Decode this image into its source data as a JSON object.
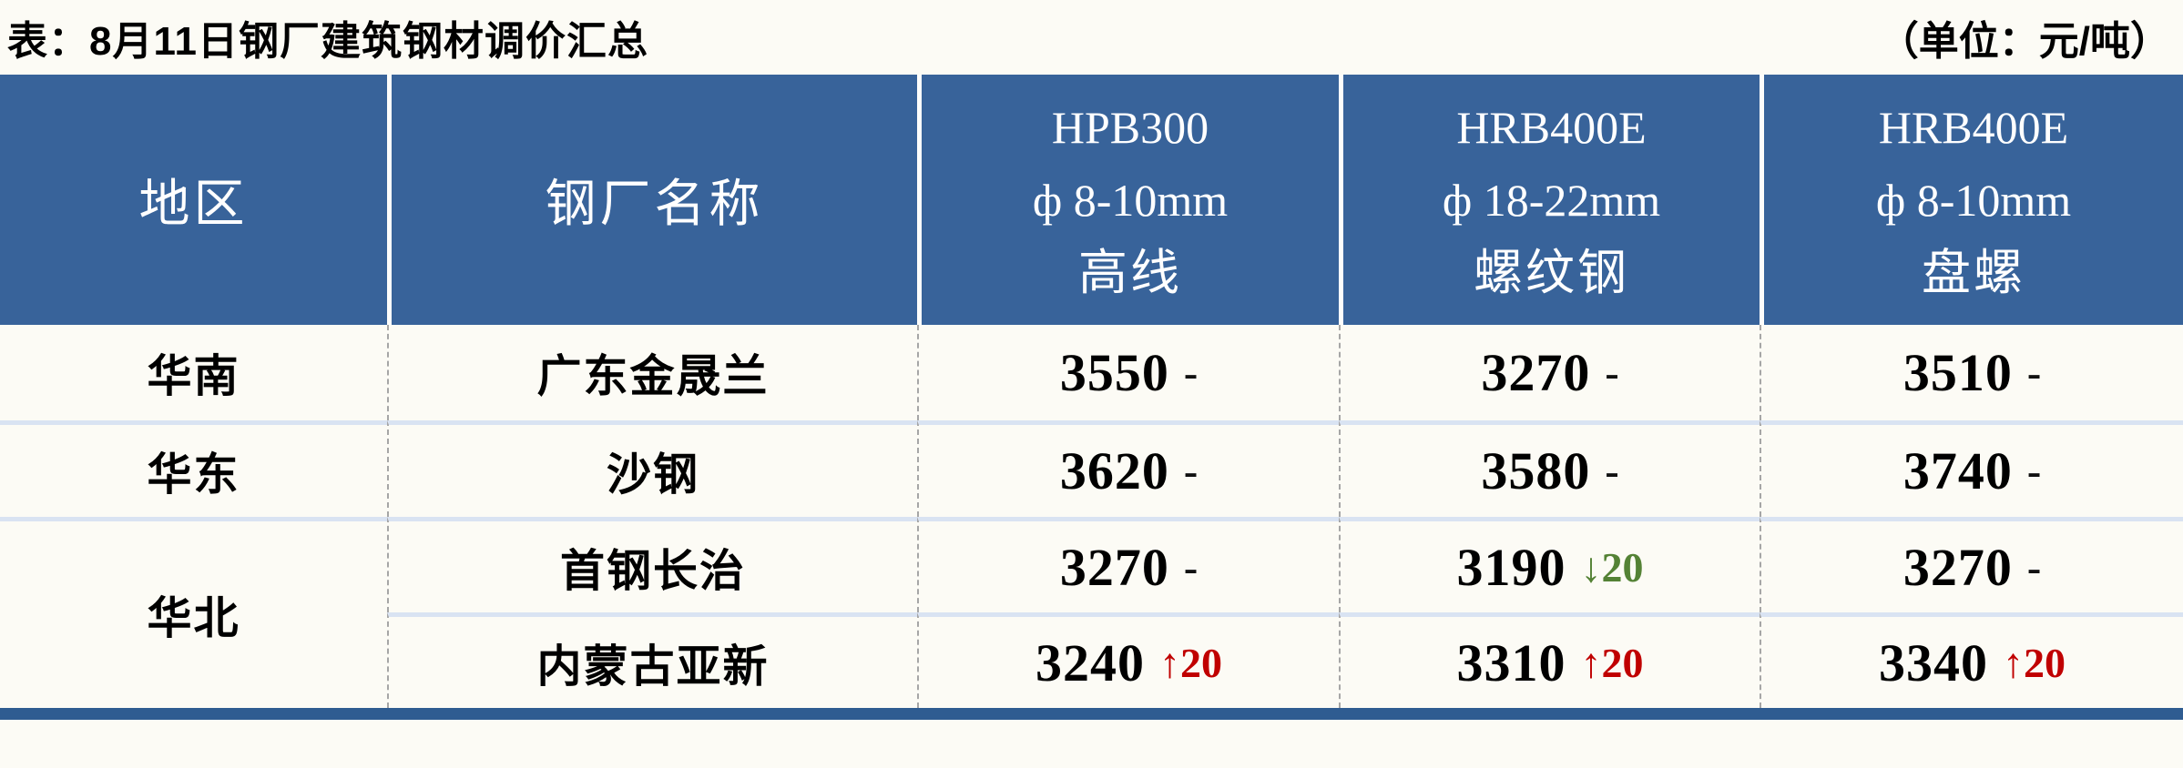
{
  "title": "表：8月11日钢厂建筑钢材调价汇总",
  "unit_label": "（单位：元/吨）",
  "colors": {
    "header_bg": "#38639A",
    "bottom_bar": "#2F5C91",
    "row_separator": "#D9E3F2",
    "up_change": "#C00000",
    "down_change": "#548235"
  },
  "header": {
    "region": "地区",
    "mill": "钢厂名称",
    "products": [
      {
        "grade": "HPB300",
        "spec": "ф 8-10mm",
        "name": "高线"
      },
      {
        "grade": "HRB400E",
        "spec": "ф 18-22mm",
        "name": "螺纹钢"
      },
      {
        "grade": "HRB400E",
        "spec": "ф 8-10mm",
        "name": "盘螺"
      }
    ]
  },
  "rows": [
    {
      "region": "华南",
      "mill": "广东金晟兰",
      "prices": [
        {
          "value": "3550",
          "change": "-",
          "dir": "none"
        },
        {
          "value": "3270",
          "change": "-",
          "dir": "none"
        },
        {
          "value": "3510",
          "change": "-",
          "dir": "none"
        }
      ]
    },
    {
      "region": "华东",
      "mill": "沙钢",
      "prices": [
        {
          "value": "3620",
          "change": "-",
          "dir": "none"
        },
        {
          "value": "3580",
          "change": "-",
          "dir": "none"
        },
        {
          "value": "3740",
          "change": "-",
          "dir": "none"
        }
      ]
    },
    {
      "region": "华北",
      "mill": "首钢长治",
      "prices": [
        {
          "value": "3270",
          "change": "-",
          "dir": "none"
        },
        {
          "value": "3190",
          "change": "↓20",
          "dir": "down"
        },
        {
          "value": "3270",
          "change": "-",
          "dir": "none"
        }
      ]
    },
    {
      "region": "",
      "mill": "内蒙古亚新",
      "prices": [
        {
          "value": "3240",
          "change": "↑20",
          "dir": "up"
        },
        {
          "value": "3310",
          "change": "↑20",
          "dir": "up"
        },
        {
          "value": "3340",
          "change": "↑20",
          "dir": "up"
        }
      ]
    }
  ],
  "chart_data": {
    "type": "table",
    "title": "表：8月11日钢厂建筑钢材调价汇总",
    "unit": "（单位：元/吨）",
    "columns": [
      "地区",
      "钢厂名称",
      "HPB300 ф8-10mm 高线",
      "HRB400E ф18-22mm 螺纹钢",
      "HRB400E ф8-10mm 盘螺"
    ],
    "rows": [
      [
        "华南",
        "广东金晟兰",
        "3550 -",
        "3270 -",
        "3510 -"
      ],
      [
        "华东",
        "沙钢",
        "3620 -",
        "3580 -",
        "3740 -"
      ],
      [
        "华北",
        "首钢长治",
        "3270 -",
        "3190 ↓20",
        "3270 -"
      ],
      [
        "华北",
        "内蒙古亚新",
        "3240 ↑20",
        "3310 ↑20",
        "3340 ↑20"
      ]
    ],
    "notes": "华北 cell merged across last two rows; ↓ changes green, ↑ changes red"
  }
}
